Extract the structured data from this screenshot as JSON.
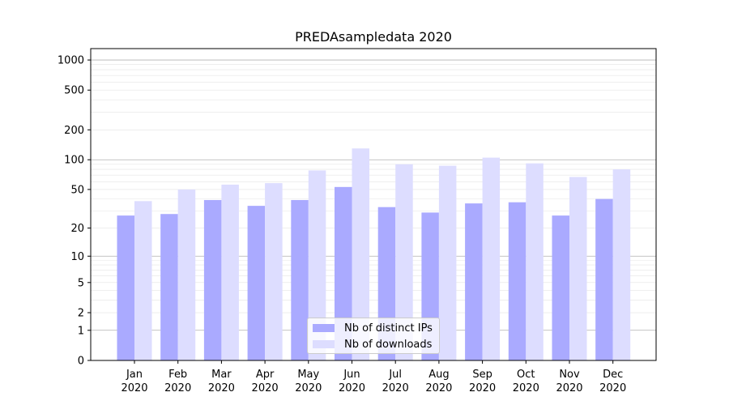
{
  "chart_data": {
    "type": "bar",
    "title": "PREDAsampledata 2020",
    "xlabel": "",
    "ylabel": "",
    "yscale": "symlog",
    "ylim": [
      0,
      1300
    ],
    "yticks": [
      "0",
      "1",
      "2",
      "5",
      "10",
      "20",
      "50",
      "100",
      "200",
      "500",
      "1000"
    ],
    "grid": true,
    "legend_position": "bottom-center",
    "categories": [
      "Jan\n2020",
      "Feb\n2020",
      "Mar\n2020",
      "Apr\n2020",
      "May\n2020",
      "Jun\n2020",
      "Jul\n2020",
      "Aug\n2020",
      "Sep\n2020",
      "Oct\n2020",
      "Nov\n2020",
      "Dec\n2020"
    ],
    "series": [
      {
        "name": "Nb of distinct IPs",
        "color": "#aaaaff",
        "values": [
          27,
          28,
          39,
          34,
          39,
          53,
          33,
          29,
          36,
          37,
          27,
          40
        ]
      },
      {
        "name": "Nb of downloads",
        "color": "#ddddff",
        "values": [
          38,
          50,
          56,
          58,
          78,
          130,
          90,
          87,
          105,
          92,
          67,
          80
        ]
      }
    ]
  }
}
